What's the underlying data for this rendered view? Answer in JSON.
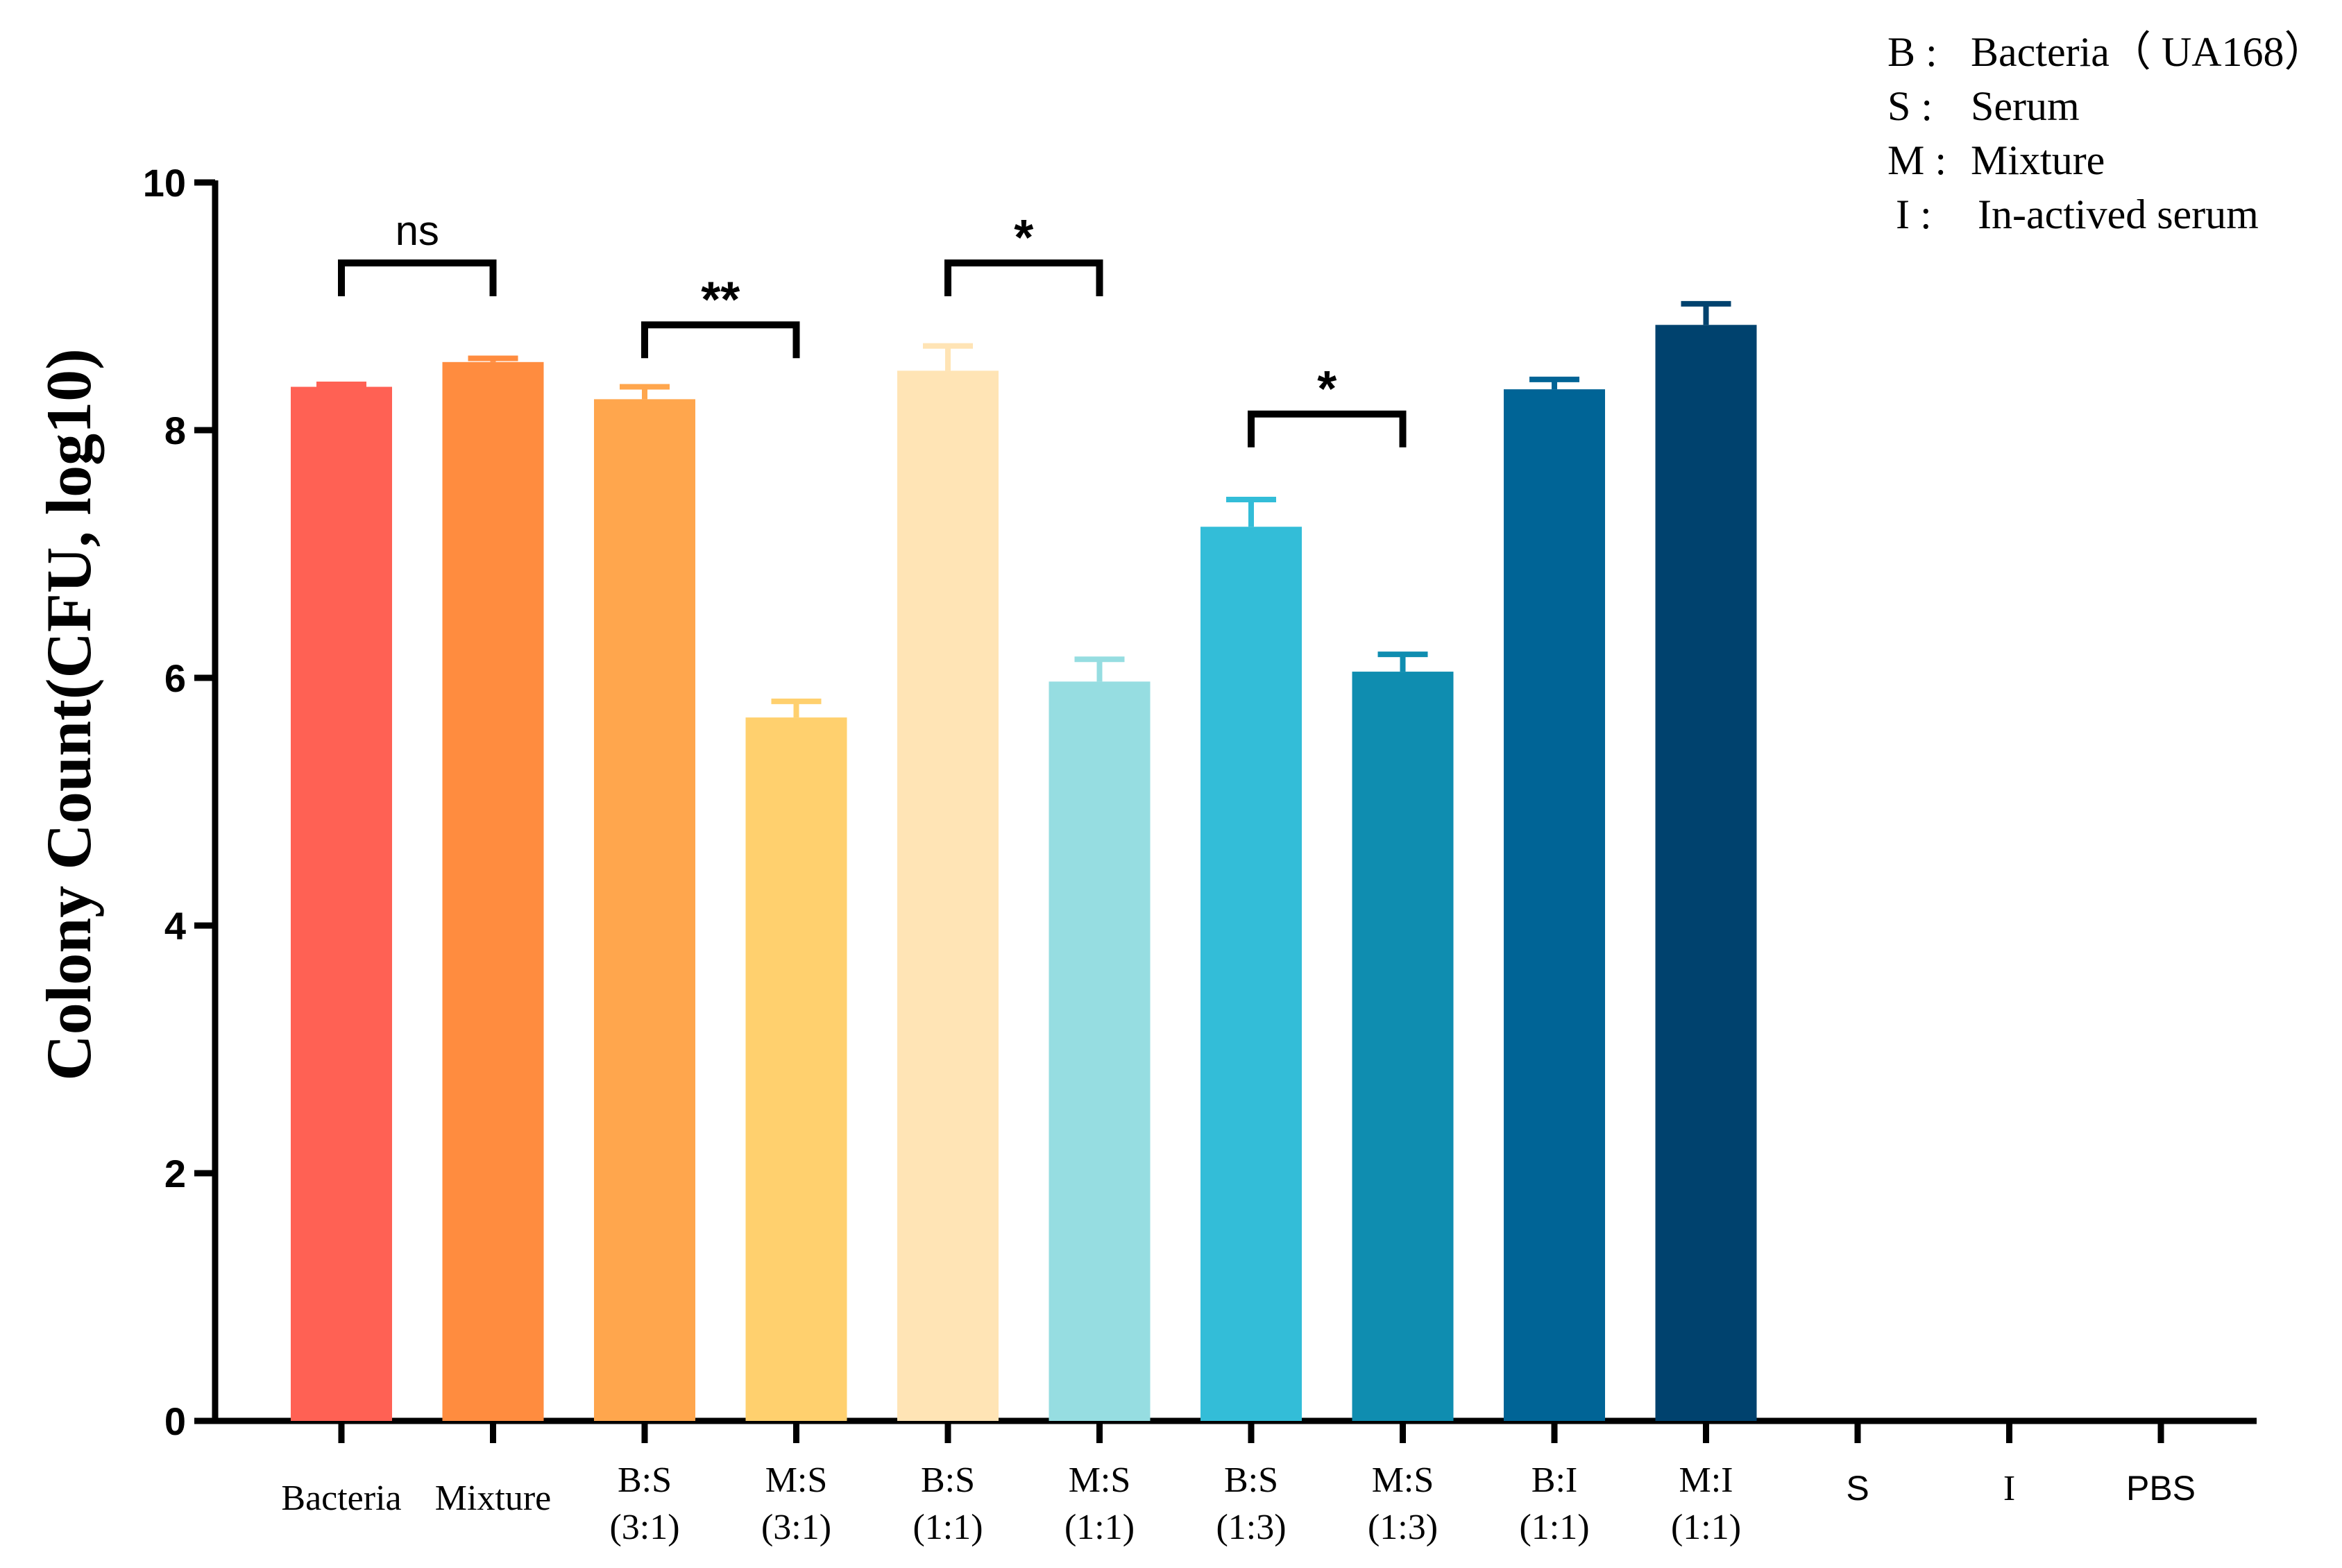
{
  "chart_data": {
    "type": "bar",
    "ylabel": "Colony Count(CFU, log10)",
    "ylim": [
      0,
      10
    ],
    "yticks": [
      "0",
      "2",
      "4",
      "6",
      "8",
      "10"
    ],
    "categories": [
      {
        "line1": "Bacteria",
        "line2": "",
        "font": "serif"
      },
      {
        "line1": "Mixture",
        "line2": "",
        "font": "serif"
      },
      {
        "line1": "B:S",
        "line2": "(3:1)",
        "font": "serif"
      },
      {
        "line1": "M:S",
        "line2": "(3:1)",
        "font": "serif"
      },
      {
        "line1": "B:S",
        "line2": "(1:1)",
        "font": "serif"
      },
      {
        "line1": "M:S",
        "line2": "(1:1)",
        "font": "serif"
      },
      {
        "line1": "B:S",
        "line2": "(1:3)",
        "font": "serif"
      },
      {
        "line1": "M:S",
        "line2": "(1:3)",
        "font": "serif"
      },
      {
        "line1": "B:I",
        "line2": "(1:1)",
        "font": "serif"
      },
      {
        "line1": "M:I",
        "line2": "(1:1)",
        "font": "serif"
      },
      {
        "line1": "S",
        "line2": "",
        "font": "sans"
      },
      {
        "line1": "I",
        "line2": "",
        "font": "serif"
      },
      {
        "line1": "PBS",
        "line2": "",
        "font": "sans"
      }
    ],
    "values": [
      8.35,
      8.55,
      8.25,
      5.68,
      8.48,
      5.97,
      7.22,
      6.05,
      8.33,
      8.85,
      0,
      0,
      0
    ],
    "errors": [
      0.02,
      0.03,
      0.1,
      0.13,
      0.2,
      0.18,
      0.22,
      0.14,
      0.08,
      0.17,
      0,
      0,
      0
    ],
    "colors": [
      "#FF6154",
      "#FF8C3F",
      "#FFA64D",
      "#FFD06E",
      "#FFE4B5",
      "#96DDE1",
      "#33BDD8",
      "#0F8DB0",
      "#006496",
      "#00426E",
      "#000000",
      "#000000",
      "#000000"
    ],
    "significance": [
      {
        "from": 0,
        "to": 1,
        "label": "ns",
        "y": 9.35
      },
      {
        "from": 2,
        "to": 3,
        "label": "**",
        "y": 8.85
      },
      {
        "from": 4,
        "to": 5,
        "label": "*",
        "y": 9.35
      },
      {
        "from": 6,
        "to": 7,
        "label": "*",
        "y": 8.13
      }
    ],
    "legend": [
      {
        "key": "B",
        "sep": ":",
        "text": "Bacteria（ UA168）"
      },
      {
        "key": "S",
        "sep": ":",
        "text": "Serum"
      },
      {
        "key": "M",
        "sep": ":",
        "text": "Mixture"
      },
      {
        "key": "I",
        "sep": ":",
        "text": "In-actived serum"
      }
    ]
  }
}
